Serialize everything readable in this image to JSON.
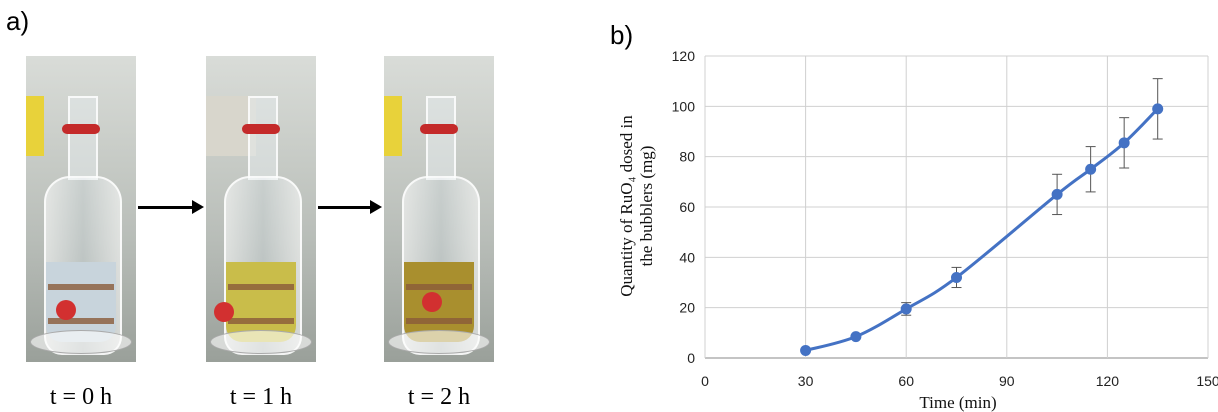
{
  "panel_a": {
    "label": "a)",
    "photos": [
      {
        "caption": "t = 0 h",
        "liquid_color": "#c8d4dc"
      },
      {
        "caption": "t = 1 h",
        "liquid_color": "#c9bd4a"
      },
      {
        "caption": "t = 2 h",
        "liquid_color": "#a98f2e"
      }
    ]
  },
  "panel_b": {
    "label": "b)"
  },
  "chart_data": {
    "type": "line",
    "xlabel": "Time (min)",
    "ylabel_line1": "Quantity of RuO₄ dosed in",
    "ylabel_line2": "the bubblers  (mg)",
    "xlim": [
      0,
      150
    ],
    "ylim": [
      0,
      120
    ],
    "xticks": [
      0,
      30,
      60,
      90,
      120,
      150
    ],
    "yticks": [
      0,
      20,
      40,
      60,
      80,
      100,
      120
    ],
    "grid": true,
    "series": [
      {
        "color": "#4472c4",
        "x": [
          30,
          45,
          60,
          75,
          105,
          115,
          125,
          135
        ],
        "y": [
          3,
          8.5,
          19.5,
          32,
          65,
          75,
          85.5,
          99
        ],
        "err": [
          0,
          0,
          2.5,
          4,
          8,
          9,
          10,
          12
        ]
      }
    ]
  }
}
